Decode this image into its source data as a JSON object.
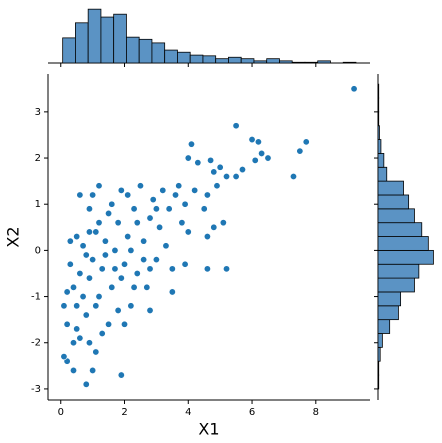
{
  "chart_data": [
    {
      "type": "scatter",
      "x_label": "X1",
      "y_label": "X2",
      "color": "#1f77b4",
      "x": [
        9.2,
        5.5,
        7.7,
        7.5,
        6.0,
        6.2,
        6.3,
        6.1,
        6.5,
        7.3,
        4.1,
        4.0,
        4.3,
        4.7,
        5.7,
        5.5,
        5.2,
        4.8,
        4.9,
        5.0,
        4.6,
        4.5,
        4.8,
        5.1,
        4.6,
        3.9,
        4.6,
        5.2,
        3.5,
        2.8,
        1.9,
        0.8,
        0.4,
        0.2,
        0.1,
        1.0,
        1.1,
        0.9,
        0.6,
        0.3,
        0.4,
        0.5,
        0.2,
        0.6,
        0.7,
        0.5,
        0.8,
        0.9,
        1.0,
        1.1,
        1.2,
        1.3,
        1.4,
        1.0,
        0.9,
        1.5,
        1.6,
        1.7,
        1.8,
        1.9,
        2.0,
        2.1,
        2.2,
        2.3,
        2.4,
        2.5,
        2.6,
        2.7,
        2.8,
        2.9,
        3.0,
        3.1,
        3.2,
        3.3,
        3.4,
        3.5,
        3.6,
        3.8,
        3.7,
        1.2,
        0.6,
        0.3,
        0.5,
        1.3,
        1.8,
        2.0,
        0.4,
        1.1,
        1.5,
        1.6,
        2.2,
        2.4,
        2.6,
        1.9,
        1.4,
        0.8,
        0.7,
        1.7,
        2.8,
        3.0,
        2.1,
        1.2,
        0.9,
        0.2,
        0.1,
        2.3,
        3.9,
        4.2,
        4.0
      ],
      "y": [
        3.5,
        2.7,
        2.35,
        2.15,
        2.4,
        2.35,
        2.1,
        1.95,
        2.0,
        1.6,
        2.3,
        2.0,
        1.9,
        1.95,
        1.75,
        1.6,
        1.6,
        1.7,
        1.4,
        1.8,
        1.2,
        0.9,
        0.5,
        0.6,
        0.3,
        -0.3,
        -0.4,
        -0.4,
        -0.9,
        -1.3,
        -2.7,
        -2.9,
        -2.6,
        -2.4,
        -2.3,
        -2.6,
        -2.2,
        -2.0,
        -1.9,
        -0.3,
        -0.8,
        -1.2,
        -1.6,
        -0.5,
        0.1,
        0.3,
        -1.4,
        -0.6,
        -0.2,
        0.4,
        -1.0,
        -0.4,
        0.2,
        1.2,
        0.9,
        -1.6,
        -0.8,
        0.0,
        0.6,
        1.3,
        -0.3,
        0.3,
        -1.2,
        0.9,
        -0.5,
        1.4,
        0.2,
        -0.8,
        0.7,
        1.1,
        -0.2,
        0.5,
        1.3,
        0.1,
        0.9,
        -0.4,
        1.2,
        0.6,
        1.4,
        1.4,
        1.2,
        0.2,
        -1.7,
        -1.8,
        -1.3,
        -1.6,
        -2.0,
        -1.2,
        0.8,
        1.0,
        0.0,
        0.6,
        -0.2,
        -0.6,
        -0.1,
        -0.1,
        -1.0,
        -0.4,
        -0.4,
        0.9,
        1.2,
        0.6,
        0.4,
        -0.9,
        -1.2,
        -0.8,
        1.0,
        1.3,
        0.4
      ],
      "xlim": [
        -0.4,
        9.7
      ],
      "ylim": [
        -3.24,
        3.82
      ],
      "xticks": [
        0,
        2,
        4,
        6,
        8
      ],
      "yticks": [
        -3,
        -2,
        -1,
        0,
        1,
        2,
        3
      ]
    },
    {
      "type": "histogram",
      "orientation": "vertical",
      "color": "#5b93c4",
      "bins": [
        0.06,
        0.46,
        0.86,
        1.26,
        1.66,
        2.06,
        2.46,
        2.86,
        3.26,
        3.66,
        4.06,
        4.46,
        4.86,
        5.26,
        5.66,
        6.06,
        6.46,
        6.86,
        7.26,
        7.66,
        8.06,
        8.46,
        8.86,
        9.26
      ],
      "counts": [
        35,
        56,
        75,
        64,
        68,
        36,
        33,
        28,
        18,
        15,
        11,
        10,
        6,
        8,
        6,
        3,
        6,
        3,
        1,
        1,
        3,
        0,
        1
      ],
      "ylim": [
        0,
        85
      ]
    },
    {
      "type": "histogram",
      "orientation": "horizontal",
      "color": "#5b93c4",
      "bins": [
        -3.0,
        -2.7,
        -2.4,
        -2.1,
        -1.8,
        -1.5,
        -1.2,
        -0.9,
        -0.6,
        -0.3,
        0.0,
        0.3,
        0.6,
        0.9,
        1.2,
        1.5,
        1.8,
        2.1,
        2.4,
        2.7,
        3.0,
        3.3,
        3.6
      ],
      "counts": [
        1,
        1,
        3,
        6,
        16,
        28,
        31,
        50,
        56,
        76,
        69,
        60,
        50,
        42,
        35,
        12,
        8,
        4,
        2,
        1,
        1,
        1
      ],
      "xlim": [
        0,
        85
      ]
    }
  ]
}
